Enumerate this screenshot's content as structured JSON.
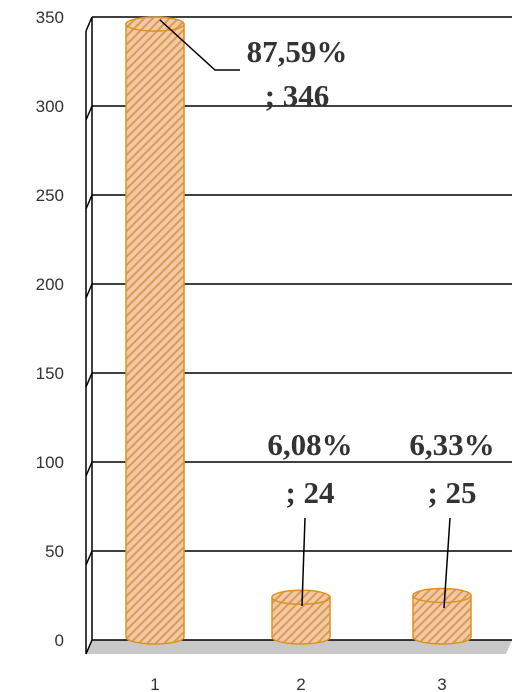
{
  "chart_data": {
    "type": "bar",
    "style": "3d-cylinder",
    "categories": [
      "1",
      "2",
      "3"
    ],
    "values": [
      346,
      24,
      25
    ],
    "percent_labels": [
      "87,59%",
      "6,08%",
      "6,33%"
    ],
    "value_labels": [
      "; 346",
      "; 24",
      "; 25"
    ],
    "ylim": [
      0,
      350
    ],
    "yticks": [
      0,
      50,
      100,
      150,
      200,
      250,
      300,
      350
    ],
    "grid": true,
    "legend": "none",
    "colors": {
      "bar_fill": "#f2c9a0",
      "bar_stripe": "#d99a5e",
      "bar_outline": "#e0901e",
      "grid": "#000000",
      "floor": "#c8c8c8"
    }
  }
}
